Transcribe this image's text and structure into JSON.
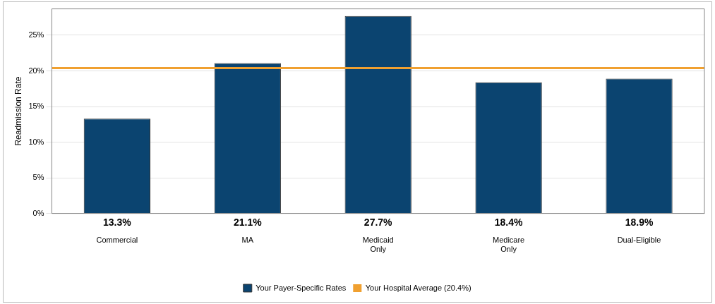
{
  "chart_data": {
    "type": "bar",
    "ylabel": "Readmission Rate",
    "categories": [
      "Commercial",
      "MA",
      "Medicaid Only",
      "Medicare Only",
      "Dual-Eligible"
    ],
    "series": [
      {
        "name": "Your Payer-Specific Rates",
        "color": "#0b4470",
        "values": [
          13.3,
          21.1,
          27.7,
          18.4,
          18.9
        ]
      }
    ],
    "value_labels": [
      "13.3%",
      "21.1%",
      "27.7%",
      "18.4%",
      "18.9%"
    ],
    "ylim": [
      0,
      28.7
    ],
    "yticks": [
      {
        "value": 0,
        "label": "0%"
      },
      {
        "value": 5,
        "label": "5%"
      },
      {
        "value": 10,
        "label": "10%"
      },
      {
        "value": 15,
        "label": "15%"
      },
      {
        "value": 20,
        "label": "20%"
      },
      {
        "value": 25,
        "label": "25%"
      }
    ],
    "ref_lines": [
      {
        "axis": "y",
        "value": 20.4,
        "label": "Your Hospital Average (20.4%)",
        "color": "#f0a030"
      }
    ],
    "grid": "y",
    "legend": "bottom"
  }
}
